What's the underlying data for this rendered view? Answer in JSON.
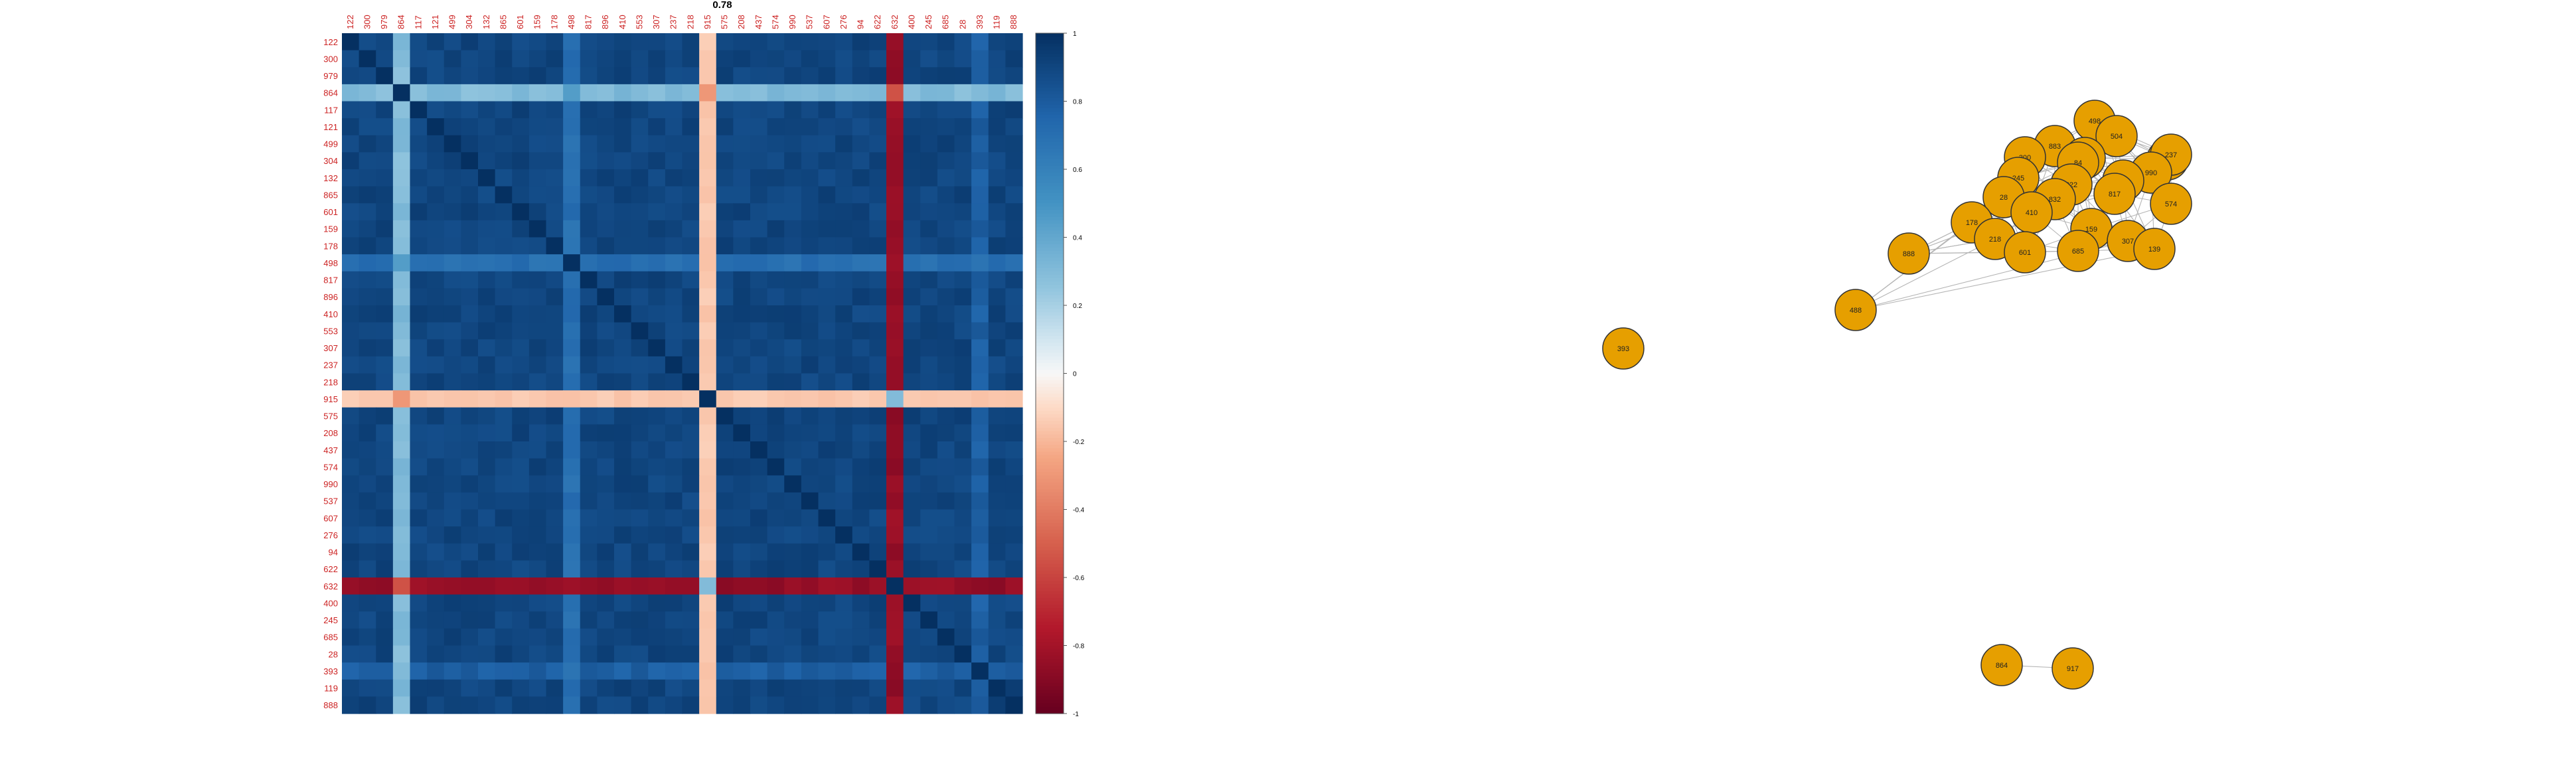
{
  "chart_data": [
    {
      "type": "heatmap",
      "title": "0.78",
      "labels": [
        "122",
        "300",
        "979",
        "864",
        "117",
        "121",
        "499",
        "304",
        "132",
        "865",
        "601",
        "159",
        "178",
        "498",
        "817",
        "896",
        "410",
        "553",
        "307",
        "237",
        "218",
        "915",
        "575",
        "208",
        "437",
        "574",
        "990",
        "537",
        "607",
        "276",
        "94",
        "622",
        "632",
        "400",
        "245",
        "685",
        "28",
        "393",
        "119",
        "888"
      ],
      "special": {
        "light_blue": "864",
        "salmon": "915",
        "red": "632",
        "mid_blue": "498",
        "semi": "393"
      },
      "legend": {
        "ticks": [
          "1",
          "0.8",
          "0.6",
          "0.4",
          "0.2",
          "0",
          "-0.2",
          "-0.4",
          "-0.6",
          "-0.8",
          "-1"
        ],
        "range": [
          -1,
          1
        ]
      },
      "colors": {
        "label": "#cc2222",
        "pos": "#053061",
        "neg": "#67001f"
      }
    },
    {
      "type": "network",
      "nodes": [
        {
          "label": "498"
        },
        {
          "label": "504"
        },
        {
          "label": "883"
        },
        {
          "label": "400"
        },
        {
          "label": "237"
        },
        {
          "label": "300"
        },
        {
          "label": "209"
        },
        {
          "label": "84"
        },
        {
          "label": "990"
        },
        {
          "label": "245"
        },
        {
          "label": "622"
        },
        {
          "label": "119"
        },
        {
          "label": "832"
        },
        {
          "label": "28"
        },
        {
          "label": "817"
        },
        {
          "label": "574"
        },
        {
          "label": "178"
        },
        {
          "label": "410"
        },
        {
          "label": "159"
        },
        {
          "label": "218"
        },
        {
          "label": "888"
        },
        {
          "label": "601"
        },
        {
          "label": "685"
        },
        {
          "label": "307"
        },
        {
          "label": "139"
        },
        {
          "label": "488"
        },
        {
          "label": "393"
        },
        {
          "label": "864"
        },
        {
          "label": "917"
        }
      ],
      "colors": {
        "node": "#e69f00",
        "edge": "#b5b5b5",
        "stroke": "#333333"
      }
    }
  ]
}
